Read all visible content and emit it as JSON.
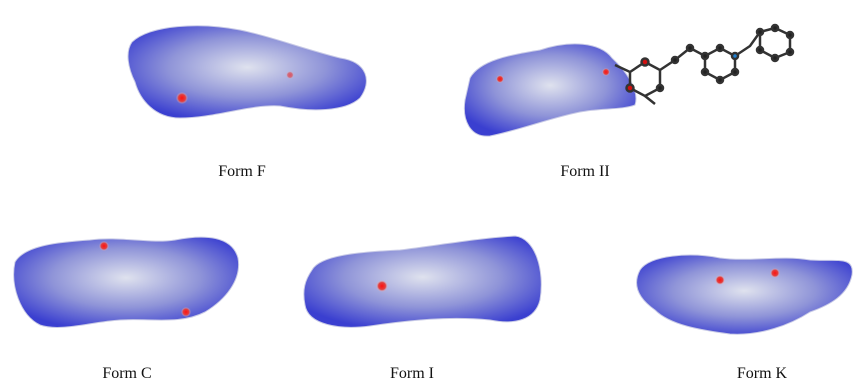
{
  "panels": [
    {
      "label": "Form F"
    },
    {
      "label": "Form II"
    },
    {
      "label": "Form C"
    },
    {
      "label": "Form I"
    },
    {
      "label": "Form K"
    }
  ]
}
